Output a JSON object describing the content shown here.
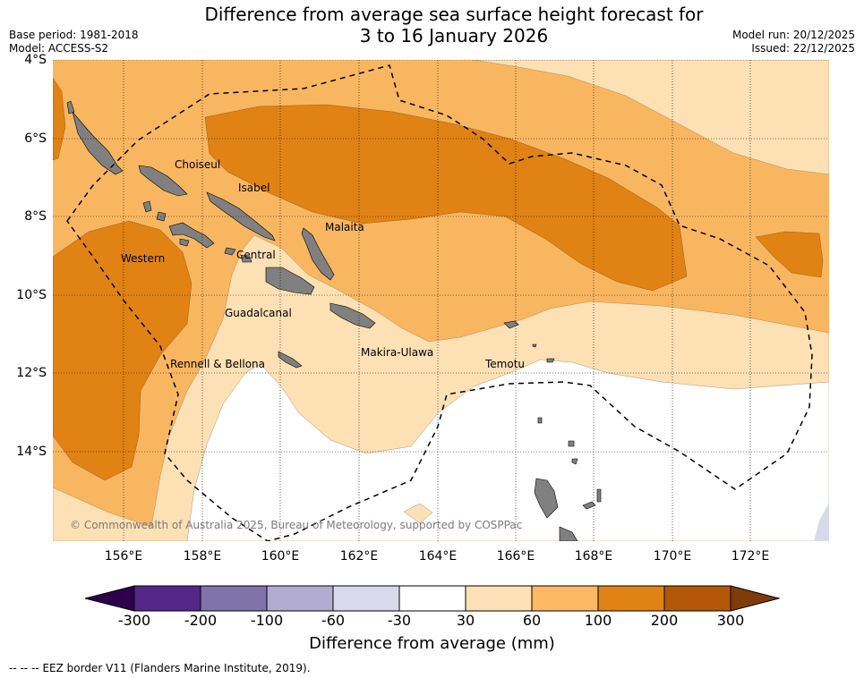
{
  "header": {
    "title_line1": "Difference from average sea surface height forecast for",
    "title_line2": "3 to 16 January 2026",
    "base_period": "Base period: 1981-2018",
    "model": "Model: ACCESS-S2",
    "model_run": "Model run: 20/12/2025",
    "issued": "Issued: 22/12/2025"
  },
  "map": {
    "lat_labels": [
      "4°S",
      "6°S",
      "8°S",
      "10°S",
      "12°S",
      "14°S"
    ],
    "lon_labels": [
      "156°E",
      "158°E",
      "160°E",
      "162°E",
      "164°E",
      "166°E",
      "168°E",
      "170°E",
      "172°E"
    ],
    "places": [
      "Choiseul",
      "Isabel",
      "Malaita",
      "Western",
      "Central",
      "Guadalcanal",
      "Makira-Ulawa",
      "Rennell & Bellona",
      "Temotu"
    ],
    "copyright": "© Commonwealth of Australia 2025, Bureau of Meteorology, supported by COSPPac",
    "colors": {
      "c30_60": "#fde0b4",
      "c60_100": "#f9b660",
      "c100_200": "#e08214",
      "c200_300": "#b35806",
      "cm60_m30": "#d8daeb",
      "land": "#808080",
      "eez": "#000000"
    }
  },
  "colorbar": {
    "ticks": [
      "-300",
      "-200",
      "-100",
      "-60",
      "-30",
      "30",
      "60",
      "100",
      "200",
      "300"
    ],
    "colors": [
      "#2d004b",
      "#542788",
      "#8073ac",
      "#b2abd2",
      "#d8daeb",
      "#ffffff",
      "#fee0b6",
      "#fdb863",
      "#e08214",
      "#b35806",
      "#7f3b08"
    ],
    "title": "Difference from average (mm)"
  },
  "footnote": {
    "dashes": "--  --  --",
    "text": "EEZ border V11 (Flanders Marine Institute, 2019)."
  }
}
